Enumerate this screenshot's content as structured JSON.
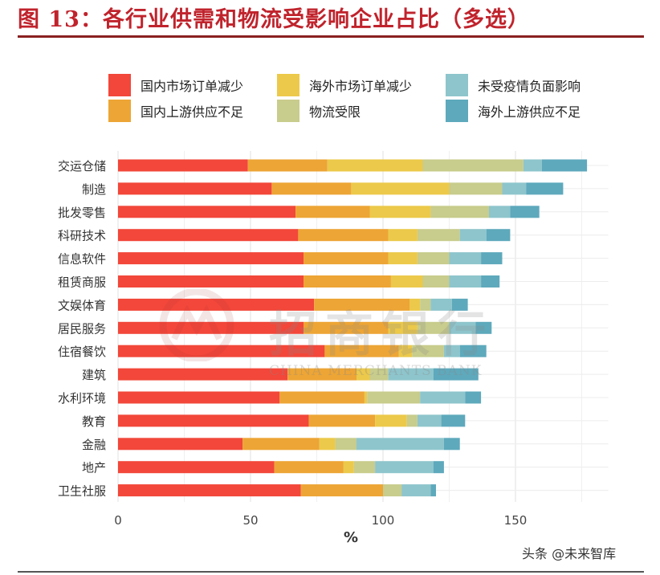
{
  "title": "图 13：各行业供需和物流受影响企业占比（多选）",
  "footer": "头条 @未来智库",
  "watermark": {
    "main": "招商银行",
    "sub": "CHINA MERCHANTS BANK"
  },
  "chart_data": {
    "type": "bar",
    "orientation": "horizontal",
    "stacked": true,
    "title": "",
    "xlabel": "%",
    "ylabel": "",
    "xlim": [
      0,
      185
    ],
    "xticks": [
      0,
      50,
      100,
      150
    ],
    "grid": true,
    "legend_position": "top",
    "categories": [
      "交运仓储",
      "制造",
      "批发零售",
      "科研技术",
      "信息软件",
      "租赁商服",
      "文娱体育",
      "居民服务",
      "住宿餐饮",
      "建筑",
      "水利环境",
      "教育",
      "金融",
      "地产",
      "卫生社服"
    ],
    "series": [
      {
        "name": "国内市场订单减少",
        "color": "#f2473a",
        "values": [
          49,
          58,
          67,
          68,
          70,
          70,
          74,
          70,
          78,
          64,
          61,
          72,
          47,
          59,
          69
        ]
      },
      {
        "name": "国内上游供应不足",
        "color": "#eda535",
        "values": [
          30,
          30,
          28,
          34,
          32,
          33,
          36,
          32,
          28,
          26,
          32,
          25,
          29,
          26,
          31
        ]
      },
      {
        "name": "海外市场订单减少",
        "color": "#ecc94a",
        "values": [
          36,
          37,
          23,
          11,
          11,
          12,
          4,
          11,
          5,
          5,
          1,
          12,
          6,
          4,
          0
        ]
      },
      {
        "name": "物流受限",
        "color": "#c8cc8c",
        "values": [
          38,
          20,
          22,
          16,
          12,
          10,
          4,
          12,
          12,
          7,
          20,
          4,
          8,
          8,
          7
        ]
      },
      {
        "name": "未受疫情负面影响",
        "color": "#8ec5cc",
        "values": [
          7,
          9,
          8,
          10,
          12,
          12,
          8,
          10,
          6,
          17,
          17,
          9,
          33,
          22,
          11
        ]
      },
      {
        "name": "海外上游供应不足",
        "color": "#5ea9bc",
        "values": [
          17,
          14,
          11,
          9,
          8,
          7,
          6,
          6,
          10,
          17,
          6,
          9,
          6,
          4,
          2
        ]
      }
    ]
  }
}
